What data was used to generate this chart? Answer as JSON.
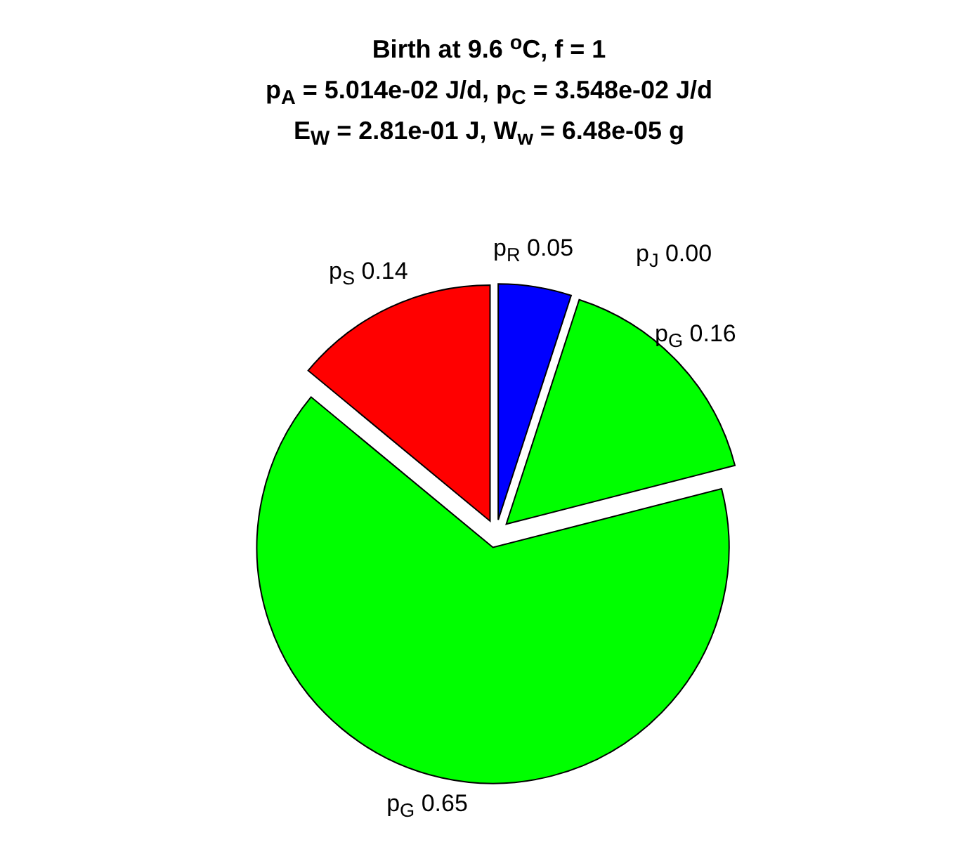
{
  "chart_data": {
    "type": "pie",
    "title": "Birth at 9.6 $^{o}$C, f = 1",
    "subtitle": "p$_{A}$ = 5.014e-02 J/d, p$_{C}$ = 3.548e-02 J/d\nE$_{W}$ = 2.81e-01 J, W$_{w}$ = 6.48e-05 g",
    "categories": [
      "p$_{R}$",
      "p$_{J}$",
      "p$_{G}$",
      "p$_{G}$",
      "p$_{S}$"
    ],
    "values": [
      0.05,
      0,
      0.16,
      0.65,
      0.14
    ],
    "value_labels": [
      "0.05",
      "0.00",
      "0.16",
      "0.65",
      "0.14"
    ],
    "colors": [
      "#0000ff",
      "#ffffff",
      "#00ff00",
      "#00ff00",
      "#ff0000"
    ],
    "legend": false
  }
}
